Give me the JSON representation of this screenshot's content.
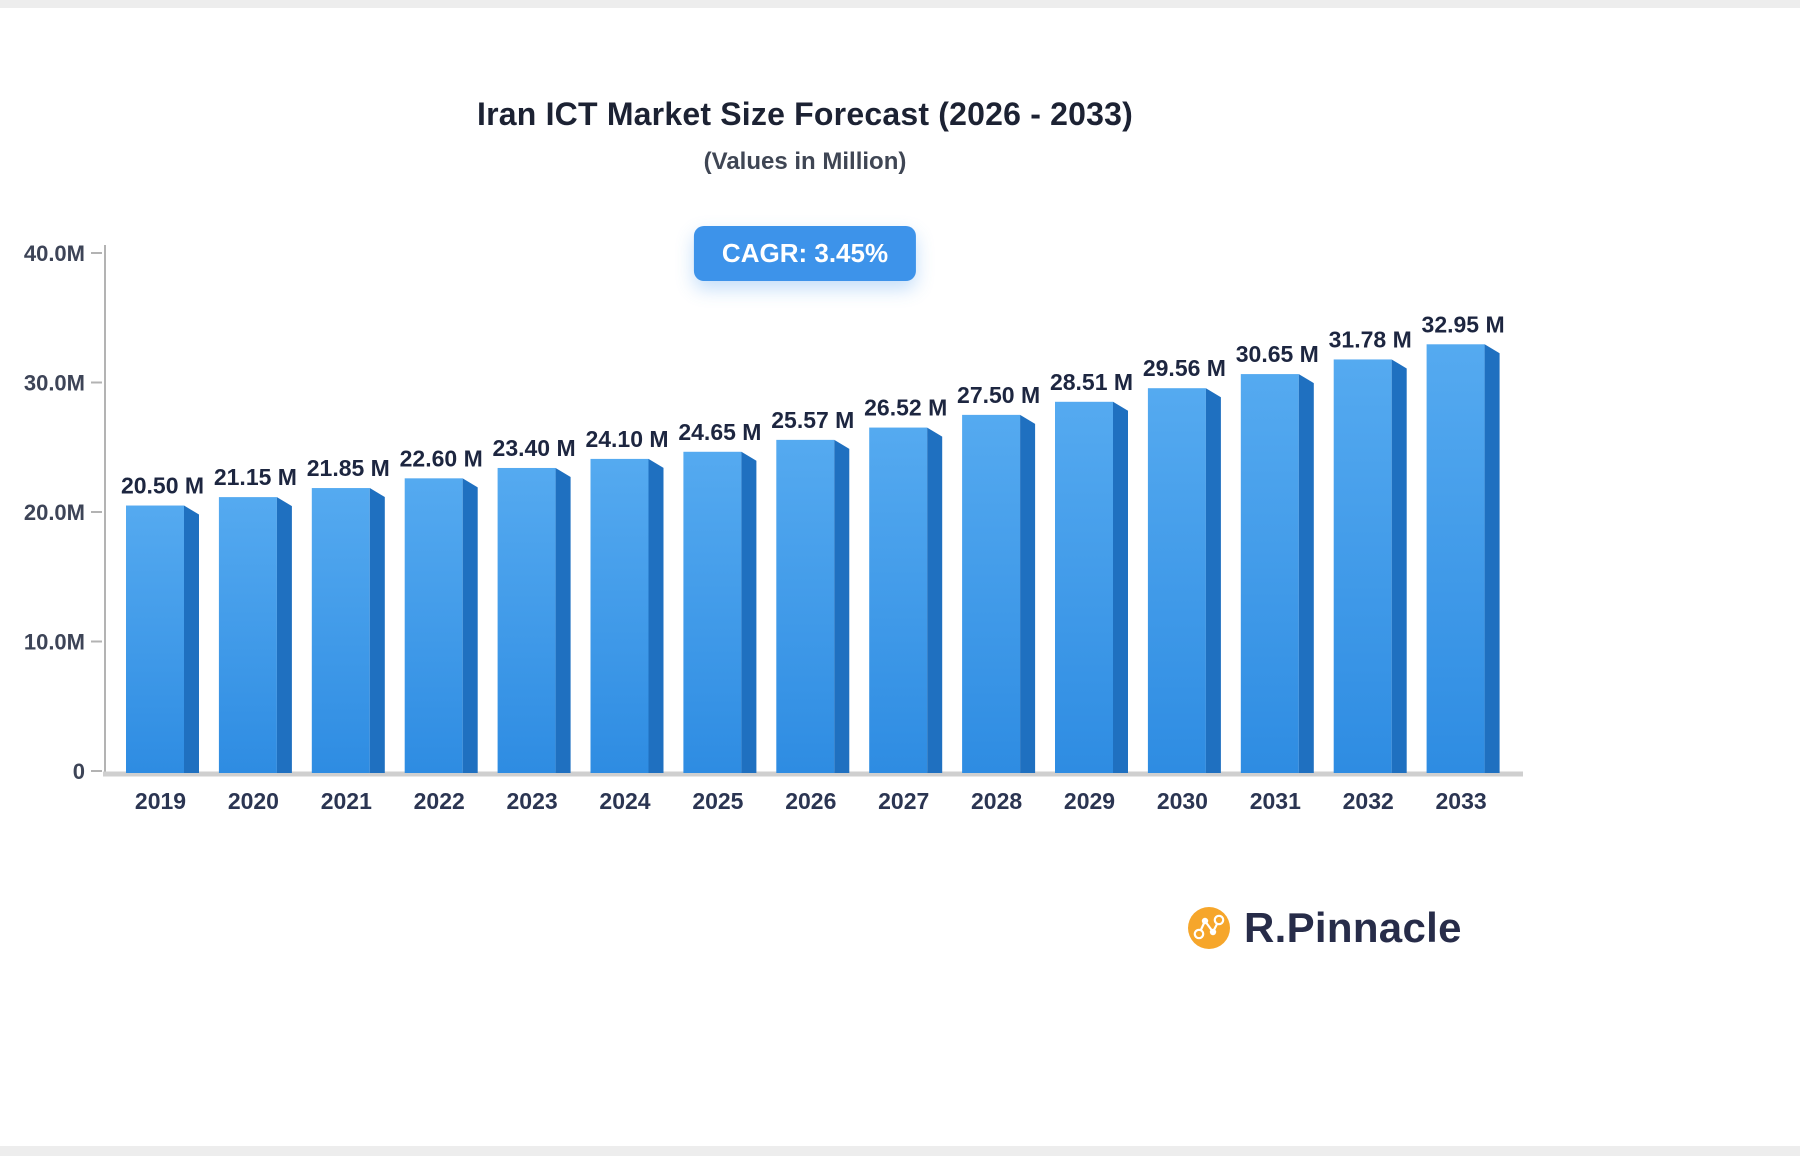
{
  "header": {
    "title": "Iran ICT Market Size Forecast (2026 - 2033)",
    "subtitle": "(Values in Million)",
    "cagr_badge": "CAGR: 3.45%"
  },
  "brand": {
    "name": "R.Pinnacle",
    "icon": "network-nodes-icon"
  },
  "colors": {
    "bar_front_light": "#55aaf0",
    "bar_front_dark": "#2e8ce2",
    "bar_side": "#1f70c0",
    "badge_bg": "#3d93ea",
    "axis": "#b3b3b3",
    "baseline": "#cfcfcf",
    "text_dark": "#1d2640",
    "brand_orange": "#f6a62b"
  },
  "chart_data": {
    "type": "bar",
    "title": "Iran ICT Market Size Forecast (2026 - 2033)",
    "subtitle": "(Values in Million)",
    "annotation": "CAGR: 3.45%",
    "categories": [
      "2019",
      "2020",
      "2021",
      "2022",
      "2023",
      "2024",
      "2025",
      "2026",
      "2027",
      "2028",
      "2029",
      "2030",
      "2031",
      "2032",
      "2033"
    ],
    "values": [
      20.5,
      21.15,
      21.85,
      22.6,
      23.4,
      24.1,
      24.65,
      25.57,
      26.52,
      27.5,
      28.51,
      29.56,
      30.65,
      31.78,
      32.95
    ],
    "labels": [
      "20.50 M",
      "21.15 M",
      "21.85 M",
      "22.60 M",
      "23.40 M",
      "24.10 M",
      "24.65 M",
      "25.57 M",
      "26.52 M",
      "27.50 M",
      "28.51 M",
      "29.56 M",
      "30.65 M",
      "31.78 M",
      "32.95 M"
    ],
    "xlabel": "",
    "ylabel": "",
    "ylim": [
      0,
      40
    ],
    "yticks": [
      {
        "value": 0,
        "label": "0"
      },
      {
        "value": 10,
        "label": "10.0M"
      },
      {
        "value": 20,
        "label": "20.0M"
      },
      {
        "value": 30,
        "label": "30.0M"
      },
      {
        "value": 40,
        "label": "40.0M"
      }
    ],
    "grid": false,
    "legend": false
  }
}
